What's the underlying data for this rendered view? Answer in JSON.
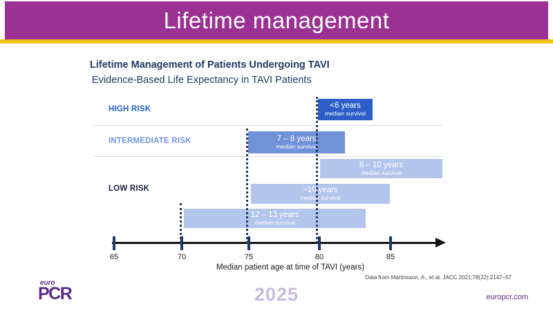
{
  "header": {
    "title": "Lifetime management"
  },
  "slide": {
    "title": "Lifetime Management of Patients Undergoing TAVI",
    "subtitle": "Evidence-Based Life Expectancy in TAVI Patients"
  },
  "chart_data": {
    "type": "bar",
    "orientation": "horizontal-range",
    "title": "Evidence-Based Life Expectancy in TAVI Patients",
    "xlabel": "Median patient age at time of TAVI (years)",
    "x_ticks": [
      65,
      70,
      75,
      80,
      85
    ],
    "xlim": [
      65,
      88
    ],
    "grid": false,
    "reference_ages_dotted": [
      70,
      75,
      80
    ],
    "groups": [
      "HIGH RISK",
      "INTERMEDIATE RISK",
      "LOW RISK"
    ],
    "bars": [
      {
        "group": "HIGH RISK",
        "label": "<6 years",
        "sublabel": "median survival",
        "age_start": 79.8,
        "age_end": 83.7,
        "color": "#2d5ec7"
      },
      {
        "group": "INTERMEDIATE RISK",
        "label": "7 – 8 years",
        "sublabel": "median survival",
        "age_start": 74.7,
        "age_end": 81.7,
        "color": "#7191d8"
      },
      {
        "group": "LOW RISK",
        "label": "8 – 10 years",
        "sublabel": "median survival",
        "age_start": 79.9,
        "age_end": 88.8,
        "color": "#b4c5eb"
      },
      {
        "group": "LOW RISK",
        "label": "~10 years",
        "sublabel": "median survival",
        "age_start": 74.9,
        "age_end": 85.0,
        "color": "#b4c5eb"
      },
      {
        "group": "LOW RISK",
        "label": "12 – 13 years",
        "sublabel": "median survival",
        "age_start": 70.0,
        "age_end": 83.2,
        "color": "#b4c5eb"
      }
    ],
    "colors": {
      "header_purple": "#9b3192",
      "gold_stripe": "#f2c31a",
      "navy_text": "#1f3864",
      "high_risk_label": "#2b5fc4",
      "intermediate_risk_label": "#7396de",
      "low_risk_label": "#16243e",
      "bar_dark_blue": "#2d5ec7",
      "bar_medium_blue": "#7191d8",
      "bar_light_blue": "#b4c5eb"
    }
  },
  "citation": "Data from Martinsson, A., et al. JACC 2021;78(22):2147–57",
  "footer": {
    "logo_top": "euro",
    "logo_main": "PCR",
    "year": "2025",
    "website": "europcr.com"
  }
}
